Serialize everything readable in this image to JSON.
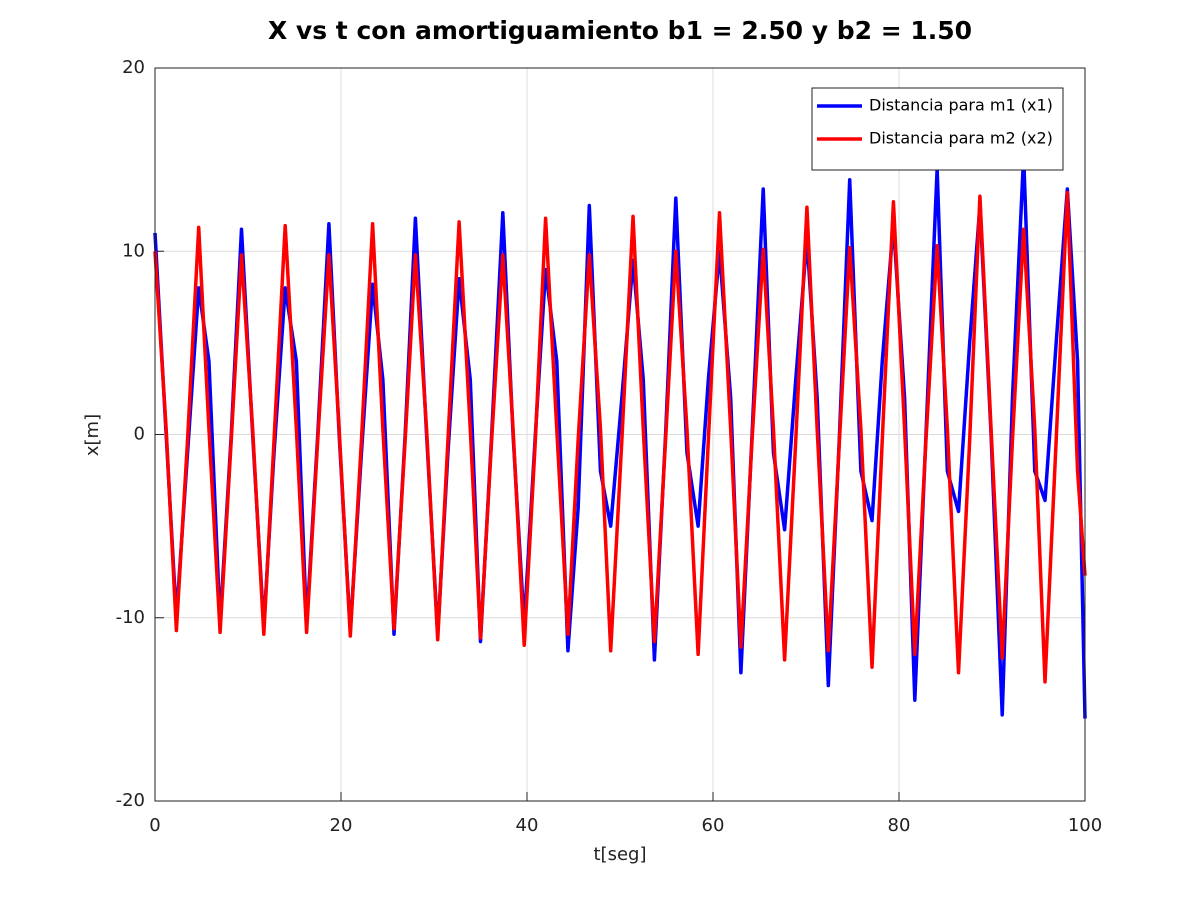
{
  "chart_data": {
    "type": "line",
    "title": "X vs t con amortiguamiento b1 = 2.50 y b2 = 1.50",
    "x_label": "t[seg]",
    "y_label": "x[m]",
    "x": [
      0.0,
      1.2,
      2.3,
      3.5,
      4.7,
      5.8,
      7.0,
      8.2,
      9.3,
      10.5,
      11.7,
      12.8,
      14.0,
      15.2,
      16.3,
      17.5,
      18.7,
      19.8,
      21.0,
      22.2,
      23.4,
      24.5,
      25.7,
      26.9,
      28.0,
      29.2,
      30.4,
      31.5,
      32.7,
      33.9,
      35.0,
      36.2,
      37.4,
      38.5,
      39.7,
      40.9,
      42.0,
      43.2,
      44.4,
      45.5,
      46.7,
      47.9,
      49.0,
      50.2,
      51.4,
      52.5,
      53.7,
      54.9,
      56.0,
      57.2,
      58.4,
      59.5,
      60.7,
      61.9,
      63.0,
      64.2,
      65.4,
      66.5,
      67.7,
      68.9,
      70.1,
      71.2,
      72.4,
      73.6,
      74.7,
      75.9,
      77.1,
      78.2,
      79.4,
      80.6,
      81.7,
      82.9,
      84.1,
      85.2,
      86.4,
      87.6,
      88.7,
      89.9,
      91.1,
      92.2,
      93.4,
      94.6,
      95.7,
      96.9,
      98.1,
      99.2,
      100.0
    ],
    "series": [
      {
        "name": "Distancia para m1 (x1)",
        "color": "#0000ff",
        "values": [
          11,
          0,
          -10,
          -1,
          8,
          4,
          -10.3,
          0,
          11.2,
          0,
          -10.5,
          -1,
          8,
          4,
          -10.4,
          0,
          11.5,
          0,
          -10.7,
          -1,
          8.2,
          3,
          -10.9,
          0,
          11.8,
          0,
          -10.9,
          -1,
          8.5,
          3,
          -11.3,
          0,
          12.1,
          0,
          -10.4,
          0,
          9,
          4,
          -11.8,
          -4,
          12.5,
          -2,
          -5,
          2,
          9.5,
          3,
          -12.3,
          0,
          12.9,
          -1,
          -5,
          3,
          10,
          2,
          -13,
          0,
          13.4,
          -1,
          -5.2,
          3,
          10.7,
          2,
          -13.7,
          0,
          13.9,
          -2,
          -4.7,
          4,
          11.5,
          2,
          -14.5,
          0,
          14.5,
          -2,
          -4.2,
          5,
          12.5,
          0,
          -15.3,
          2,
          15.2,
          -2,
          -3.6,
          5,
          13.4,
          4,
          -15.5
        ]
      },
      {
        "name": "Distancia para m2 (x2)",
        "color": "#ff0000",
        "values": [
          10,
          0.3,
          -10.7,
          -0.3,
          11.3,
          0.3,
          -10.8,
          -0.3,
          9.8,
          0.3,
          -10.9,
          -0.3,
          11.4,
          0.3,
          -10.8,
          -0.3,
          9.8,
          0.3,
          -11,
          -0.3,
          11.5,
          0.3,
          -10.6,
          -0.3,
          9.8,
          0.3,
          -11.2,
          -0.3,
          11.6,
          0.3,
          -11.1,
          -0.3,
          9.8,
          0.3,
          -11.5,
          -0.3,
          11.8,
          0.3,
          -10.9,
          -0.3,
          9.8,
          0.3,
          -11.8,
          -0.3,
          11.9,
          0.3,
          -11.3,
          -0.3,
          10,
          0.3,
          -12,
          -0.3,
          12.1,
          0.3,
          -11.6,
          -0.3,
          10.1,
          0.3,
          -12.3,
          -0.3,
          12.4,
          0.3,
          -11.8,
          -0.3,
          10.2,
          0.3,
          -12.7,
          -0.3,
          12.7,
          0.3,
          -12,
          -0.3,
          10.3,
          0.3,
          -13,
          -0.3,
          13,
          0.3,
          -12.2,
          -0.3,
          11.2,
          0.3,
          -13.5,
          -0.3,
          13.2,
          -2,
          -7.7
        ]
      }
    ],
    "xlim": [
      0,
      100
    ],
    "xticks": [
      0,
      20,
      40,
      60,
      80,
      100
    ],
    "ylim": [
      -20,
      20
    ],
    "yticks": [
      -20,
      -10,
      0,
      10,
      20
    ],
    "grid": true,
    "legend": "northeast"
  }
}
